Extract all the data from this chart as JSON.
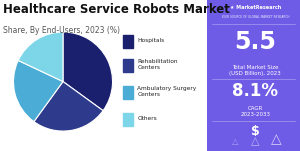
{
  "title": "Healthcare Service Robots Market",
  "subtitle": "Share, By End-Users, 2023 (%)",
  "pie_values": [
    35,
    25,
    22,
    18
  ],
  "pie_colors": [
    "#1a1f6e",
    "#2e3a8c",
    "#4bacd6",
    "#7dd6e8"
  ],
  "legend_labels": [
    "Hospitals",
    "Rehabilitation\nCenters",
    "Ambulatory Surgery\nCenters",
    "Others"
  ],
  "legend_colors": [
    "#1a1f6e",
    "#2e3a8c",
    "#4bacd6",
    "#7dd6e8"
  ],
  "right_bg_color": "#6e5ce6",
  "right_title_value": "5.5",
  "right_title_label": "Total Market Size\n(USD Billion), 2023",
  "right_cagr_value": "8.1%",
  "right_cagr_label": "CAGR\n2023-2033",
  "right_bottom_value": "$",
  "title_fontsize": 8.5,
  "subtitle_fontsize": 5.5,
  "bg_color": "#ffffff"
}
